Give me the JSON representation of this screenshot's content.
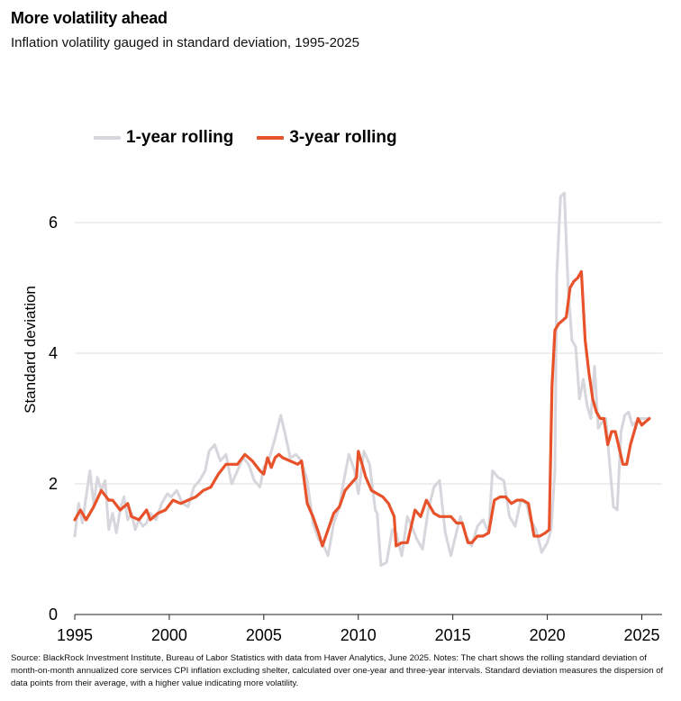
{
  "header": {
    "title": "More volatility ahead",
    "subtitle": "Inflation volatility gauged in standard deviation, 1995-2025"
  },
  "legend": {
    "items": [
      {
        "label": "1-year rolling",
        "color": "#d6d6dc"
      },
      {
        "label": "3-year rolling",
        "color": "#e8522a"
      }
    ]
  },
  "footnote": "Source: BlackRock Investment Institute, Bureau of Labor Statistics with data from Haver Analytics, June 2025. Notes: The chart shows the rolling standard deviation of month-on-month annualized core services CPI inflation excluding shelter, calculated over one-year and three-year intervals. Standard deviation measures the dispersion of data points from their average, with a higher value indicating more volatility.",
  "chart_data": {
    "type": "line",
    "title": "More volatility ahead",
    "subtitle": "Inflation volatility gauged in standard deviation, 1995-2025",
    "xlabel": "",
    "ylabel": "Standard deviation",
    "xlim": [
      1995,
      2025.5
    ],
    "ylim": [
      0,
      7.2
    ],
    "xticks": [
      "1995",
      "2000",
      "2005",
      "2010",
      "2015",
      "2020",
      "2025"
    ],
    "xtick_values": [
      1995,
      2000,
      2005,
      2010,
      2015,
      2020,
      2025
    ],
    "yticks": [
      "0",
      "2",
      "4",
      "6"
    ],
    "ytick_values": [
      0,
      2,
      4,
      6
    ],
    "grid": "horizontal",
    "legend_position": "top-left",
    "series": [
      {
        "name": "1-year rolling",
        "color": "#d6d6dc",
        "x": [
          1995.0,
          1995.2,
          1995.4,
          1995.6,
          1995.8,
          1996.0,
          1996.2,
          1996.4,
          1996.6,
          1996.8,
          1997.0,
          1997.2,
          1997.4,
          1997.6,
          1997.8,
          1998.0,
          1998.2,
          1998.4,
          1998.6,
          1998.8,
          1999.0,
          1999.3,
          1999.6,
          1999.9,
          2000.1,
          2000.4,
          2000.7,
          2001.0,
          2001.3,
          2001.6,
          2001.9,
          2002.1,
          2002.4,
          2002.7,
          2003.0,
          2003.3,
          2003.6,
          2003.9,
          2004.2,
          2004.5,
          2004.8,
          2005.0,
          2005.3,
          2005.6,
          2005.9,
          2006.1,
          2006.4,
          2006.7,
          2007.0,
          2007.3,
          2007.6,
          2007.9,
          2008.1,
          2008.4,
          2008.7,
          2009.0,
          2009.2,
          2009.5,
          2009.8,
          2010.0,
          2010.3,
          2010.6,
          2010.9,
          2011.0,
          2011.2,
          2011.5,
          2011.8,
          2012.0,
          2012.3,
          2012.6,
          2012.9,
          2013.1,
          2013.4,
          2013.7,
          2014.0,
          2014.3,
          2014.6,
          2014.9,
          2015.1,
          2015.4,
          2015.7,
          2016.0,
          2016.3,
          2016.6,
          2016.9,
          2017.1,
          2017.4,
          2017.7,
          2018.0,
          2018.3,
          2018.6,
          2018.9,
          2019.1,
          2019.4,
          2019.7,
          2020.0,
          2020.2,
          2020.4,
          2020.5,
          2020.7,
          2020.9,
          2021.1,
          2021.3,
          2021.5,
          2021.7,
          2021.9,
          2022.1,
          2022.3,
          2022.5,
          2022.7,
          2022.9,
          2023.1,
          2023.3,
          2023.5,
          2023.7,
          2023.9,
          2024.1,
          2024.3,
          2024.5,
          2024.7,
          2024.9,
          2025.1,
          2025.4
        ],
        "values": [
          1.2,
          1.7,
          1.4,
          1.8,
          2.2,
          1.7,
          2.1,
          1.9,
          2.05,
          1.3,
          1.55,
          1.25,
          1.6,
          1.8,
          1.45,
          1.55,
          1.3,
          1.45,
          1.35,
          1.4,
          1.55,
          1.45,
          1.7,
          1.85,
          1.8,
          1.9,
          1.7,
          1.65,
          1.95,
          2.05,
          2.2,
          2.5,
          2.6,
          2.35,
          2.45,
          2.0,
          2.2,
          2.4,
          2.3,
          2.05,
          1.95,
          2.25,
          2.4,
          2.7,
          3.05,
          2.8,
          2.4,
          2.45,
          2.35,
          2.05,
          1.4,
          1.15,
          1.1,
          0.9,
          1.4,
          1.65,
          2.0,
          2.45,
          2.2,
          1.85,
          2.5,
          2.3,
          1.6,
          1.55,
          0.75,
          0.8,
          1.3,
          1.25,
          0.9,
          1.5,
          1.3,
          1.15,
          1.0,
          1.6,
          1.95,
          2.05,
          1.25,
          0.9,
          1.15,
          1.5,
          1.2,
          1.05,
          1.35,
          1.45,
          1.25,
          2.2,
          2.1,
          2.05,
          1.5,
          1.35,
          1.75,
          1.7,
          1.45,
          1.3,
          0.95,
          1.1,
          1.3,
          2.2,
          5.2,
          6.4,
          6.45,
          5.0,
          4.2,
          4.1,
          3.3,
          3.6,
          3.2,
          3.0,
          3.8,
          2.85,
          2.95,
          3.0,
          2.3,
          1.65,
          1.6,
          2.8,
          3.05,
          3.1,
          2.9,
          2.95,
          3.0,
          3.0,
          3.0
        ]
      },
      {
        "name": "3-year rolling",
        "color": "#e8522a",
        "x": [
          1995.0,
          1995.3,
          1995.6,
          1996.0,
          1996.4,
          1996.8,
          1997.0,
          1997.4,
          1997.8,
          1998.0,
          1998.4,
          1998.8,
          1999.0,
          1999.4,
          1999.8,
          2000.2,
          2000.6,
          2001.0,
          2001.4,
          2001.8,
          2002.2,
          2002.6,
          2003.0,
          2003.3,
          2003.6,
          2004.0,
          2004.4,
          2004.8,
          2005.0,
          2005.2,
          2005.4,
          2005.6,
          2005.8,
          2006.0,
          2006.4,
          2006.8,
          2007.0,
          2007.3,
          2007.6,
          2007.9,
          2008.1,
          2008.4,
          2008.7,
          2009.0,
          2009.3,
          2009.6,
          2009.9,
          2010.0,
          2010.2,
          2010.4,
          2010.7,
          2011.0,
          2011.3,
          2011.6,
          2011.9,
          2012.0,
          2012.3,
          2012.6,
          2013.0,
          2013.3,
          2013.6,
          2014.0,
          2014.3,
          2014.6,
          2014.9,
          2015.2,
          2015.5,
          2015.8,
          2016.0,
          2016.3,
          2016.6,
          2016.9,
          2017.2,
          2017.5,
          2017.8,
          2018.1,
          2018.4,
          2018.7,
          2019.0,
          2019.3,
          2019.6,
          2019.9,
          2020.1,
          2020.25,
          2020.4,
          2020.6,
          2020.8,
          2021.0,
          2021.2,
          2021.4,
          2021.6,
          2021.8,
          2022.0,
          2022.2,
          2022.4,
          2022.6,
          2022.8,
          2023.0,
          2023.2,
          2023.4,
          2023.6,
          2023.8,
          2024.0,
          2024.2,
          2024.4,
          2024.6,
          2024.8,
          2025.0,
          2025.2,
          2025.4
        ],
        "values": [
          1.45,
          1.6,
          1.45,
          1.65,
          1.9,
          1.75,
          1.75,
          1.6,
          1.7,
          1.5,
          1.45,
          1.6,
          1.45,
          1.55,
          1.6,
          1.75,
          1.7,
          1.75,
          1.8,
          1.9,
          1.95,
          2.15,
          2.3,
          2.3,
          2.3,
          2.45,
          2.35,
          2.2,
          2.15,
          2.4,
          2.25,
          2.4,
          2.45,
          2.4,
          2.35,
          2.3,
          2.35,
          1.7,
          1.5,
          1.25,
          1.05,
          1.3,
          1.55,
          1.65,
          1.9,
          2.0,
          2.1,
          2.5,
          2.3,
          2.1,
          1.9,
          1.85,
          1.8,
          1.7,
          1.5,
          1.05,
          1.1,
          1.1,
          1.6,
          1.5,
          1.75,
          1.55,
          1.5,
          1.5,
          1.5,
          1.4,
          1.4,
          1.1,
          1.1,
          1.2,
          1.2,
          1.25,
          1.75,
          1.8,
          1.8,
          1.7,
          1.75,
          1.75,
          1.7,
          1.2,
          1.2,
          1.25,
          1.3,
          3.5,
          4.35,
          4.45,
          4.5,
          4.55,
          5.0,
          5.1,
          5.15,
          5.25,
          4.2,
          3.7,
          3.3,
          3.1,
          3.0,
          3.0,
          2.6,
          2.8,
          2.8,
          2.55,
          2.3,
          2.3,
          2.6,
          2.8,
          3.0,
          2.9,
          2.95,
          3.0
        ]
      }
    ]
  }
}
